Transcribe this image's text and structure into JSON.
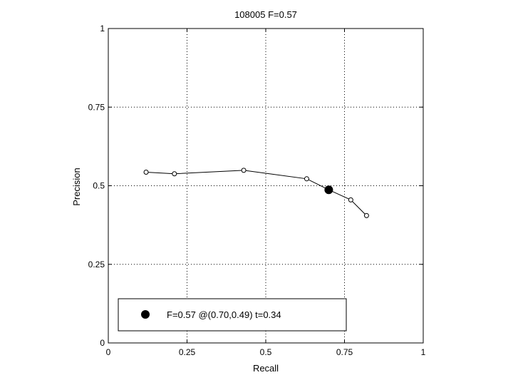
{
  "chart_data": {
    "type": "line",
    "title": "108005 F=0.57",
    "xlabel": "Recall",
    "ylabel": "Precision",
    "xlim": [
      0,
      1
    ],
    "ylim": [
      0,
      1
    ],
    "xticks": [
      0,
      0.25,
      0.5,
      0.75,
      1
    ],
    "xtick_labels": [
      "0",
      "0.25",
      "0.5",
      "0.75",
      "1"
    ],
    "yticks": [
      0,
      0.25,
      0.5,
      0.75,
      1
    ],
    "ytick_labels": [
      "0",
      "0.25",
      "0.5",
      "0.75",
      "1"
    ],
    "grid": true,
    "grid_style": "dotted",
    "legend_position": "bottom",
    "series": [
      {
        "type": "line",
        "marker": "open-circle",
        "points": [
          {
            "x": 0.12,
            "y": 0.543
          },
          {
            "x": 0.21,
            "y": 0.538
          },
          {
            "x": 0.43,
            "y": 0.549
          },
          {
            "x": 0.63,
            "y": 0.522
          },
          {
            "x": 0.7,
            "y": 0.487
          },
          {
            "x": 0.77,
            "y": 0.455
          },
          {
            "x": 0.82,
            "y": 0.405
          }
        ]
      }
    ],
    "best_point": {
      "x": 0.7,
      "y": 0.487,
      "label": "F=0.57 @(0.70,0.49) t=0.34"
    },
    "colors": {
      "line": "#000000",
      "grid": "#000000",
      "background": "#ffffff"
    }
  }
}
